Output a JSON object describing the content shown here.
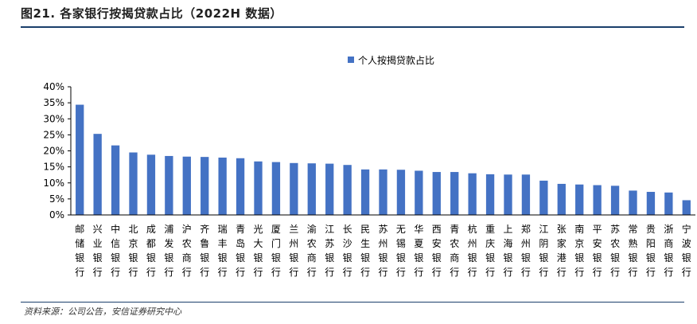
{
  "title": "图21. 各家银行按揭贷款占比（2022H 数据）",
  "source": "资料来源：公司公告，安信证券研究中心",
  "colors": {
    "bar": "#4472c4",
    "rule": "#1a3f6b"
  },
  "chart_data": {
    "type": "bar",
    "legend": "top-center",
    "grid": false,
    "ylim": [
      0,
      40
    ],
    "yticks": [
      "0%",
      "5%",
      "10%",
      "15%",
      "20%",
      "25%",
      "30%",
      "35%",
      "40%"
    ],
    "categories": [
      "邮储银行",
      "兴业银行",
      "中信银行",
      "北京银行",
      "成都银行",
      "浦发银行",
      "沪农商行",
      "齐鲁银行",
      "瑞丰银行",
      "青岛银行",
      "光大银行",
      "厦门银行",
      "兰州银行",
      "渝农商行",
      "江苏银行",
      "长沙银行",
      "民生银行",
      "苏州银行",
      "无锡银行",
      "华夏银行",
      "西安银行",
      "青农商行",
      "杭州银行",
      "重庆银行",
      "上海银行",
      "郑州银行",
      "江阴银行",
      "张家港行",
      "南京银行",
      "平安银行",
      "苏农银行",
      "常熟银行",
      "贵阳银行",
      "浙商银行",
      "宁波银行"
    ],
    "series": [
      {
        "name": "个人按揭贷款占比",
        "values": [
          34.4,
          25.3,
          21.7,
          19.5,
          18.8,
          18.4,
          18.2,
          18.1,
          17.9,
          17.7,
          16.7,
          16.5,
          16.2,
          16.1,
          16.0,
          15.6,
          14.2,
          14.2,
          14.1,
          13.8,
          13.4,
          13.4,
          13.0,
          12.7,
          12.6,
          12.6,
          10.7,
          9.7,
          9.5,
          9.3,
          9.1,
          7.6,
          7.2,
          7.0,
          4.6
        ]
      }
    ]
  }
}
